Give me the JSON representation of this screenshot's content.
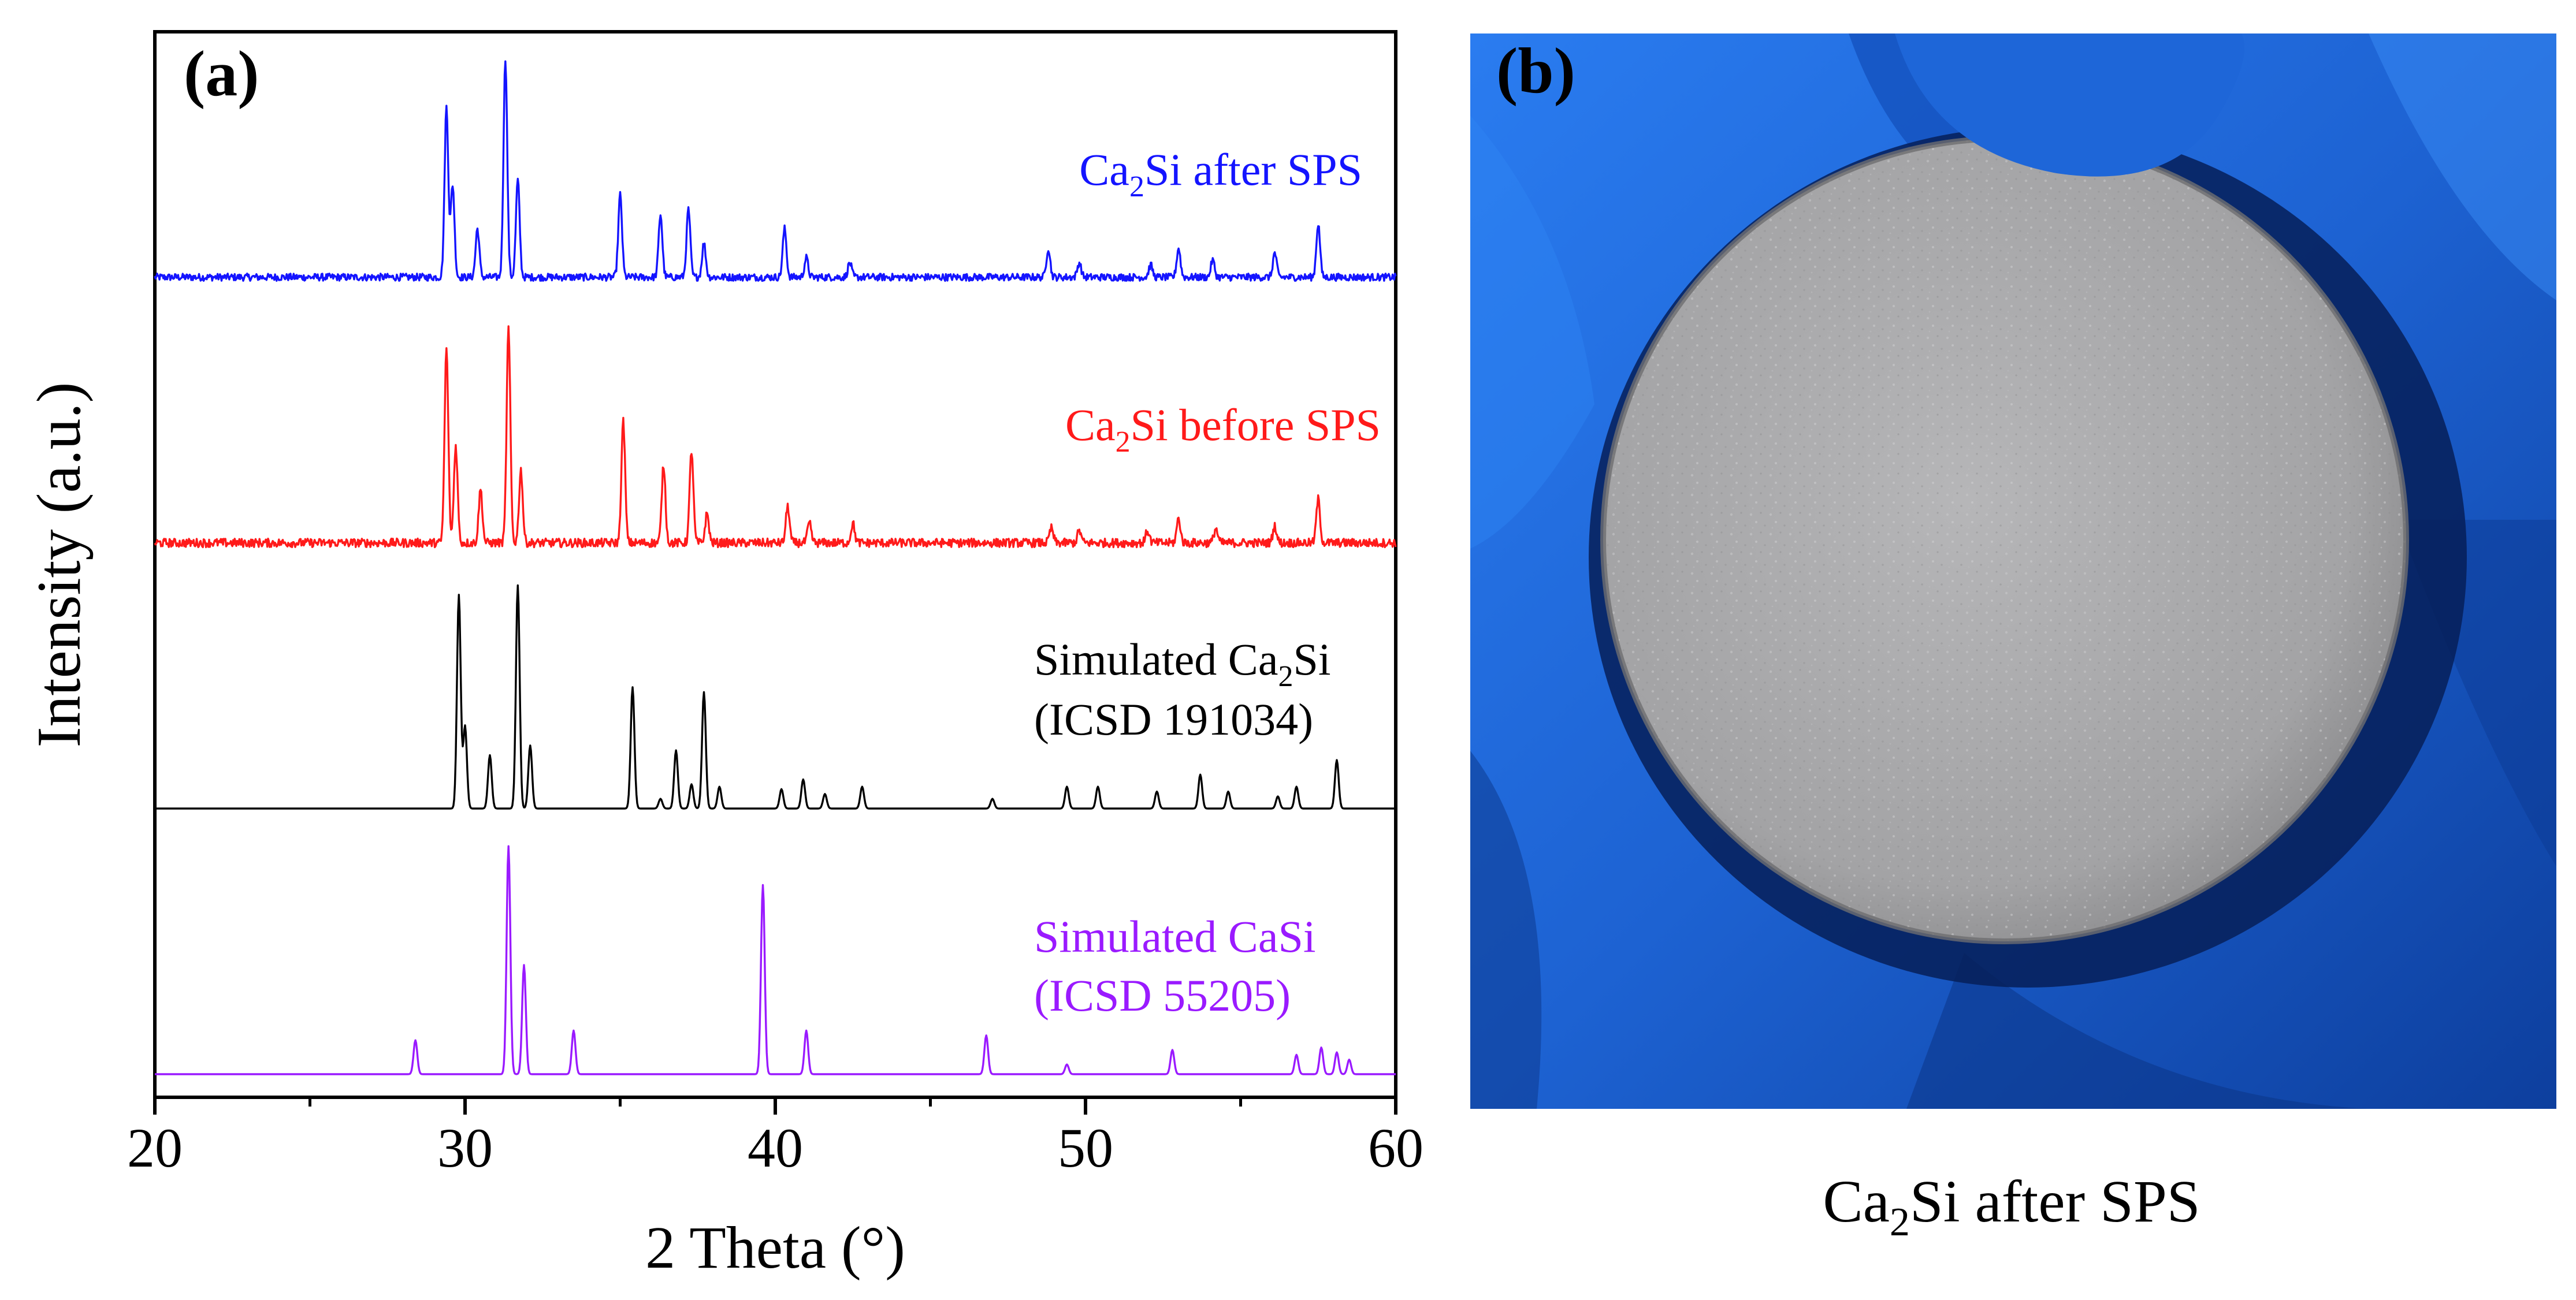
{
  "panel_a": {
    "label": "(a)"
  },
  "panel_b": {
    "label": "(b)",
    "caption_main": "Ca",
    "caption_sub": "2",
    "caption_rest": "Si after SPS"
  },
  "colors": {
    "after_sps": "#1414ff",
    "before_sps": "#ff1a1a",
    "sim_ca2si": "#000000",
    "sim_casi": "#9a1aff",
    "glove": "#1f6fe0",
    "pellet": "#a9a9ab"
  },
  "chart_data": {
    "type": "line",
    "title": "",
    "xlabel": "2 Theta (°)",
    "ylabel": "Intensity (a.u.)",
    "xlim": [
      20,
      60
    ],
    "xticks": [
      20,
      30,
      40,
      50,
      60
    ],
    "xtick_labels": [
      "20",
      "30",
      "40",
      "50",
      "60"
    ],
    "yticks": "none (arbitrary units, stacked offset patterns)",
    "series": [
      {
        "name": "Ca2Si after SPS",
        "legend_main": "Ca",
        "legend_sub": "2",
        "legend_rest": "Si after SPS",
        "color": "#1414ff",
        "offset": 3.0,
        "noise": 0.015,
        "peaks": [
          [
            29.4,
            0.7
          ],
          [
            29.6,
            0.38
          ],
          [
            30.4,
            0.2
          ],
          [
            31.3,
            0.9
          ],
          [
            31.7,
            0.4
          ],
          [
            35.0,
            0.34
          ],
          [
            36.3,
            0.26
          ],
          [
            37.2,
            0.28
          ],
          [
            37.7,
            0.14
          ],
          [
            40.3,
            0.2
          ],
          [
            41.0,
            0.08
          ],
          [
            42.4,
            0.06
          ],
          [
            48.8,
            0.12
          ],
          [
            49.8,
            0.06
          ],
          [
            52.1,
            0.05
          ],
          [
            53.0,
            0.12
          ],
          [
            54.1,
            0.07
          ],
          [
            56.1,
            0.1
          ],
          [
            57.5,
            0.22
          ]
        ]
      },
      {
        "name": "Ca2Si before SPS",
        "legend_main": "Ca",
        "legend_sub": "2",
        "legend_rest": "Si before SPS",
        "color": "#ff1a1a",
        "offset": 2.0,
        "noise": 0.018,
        "peaks": [
          [
            29.4,
            0.8
          ],
          [
            29.7,
            0.4
          ],
          [
            30.5,
            0.22
          ],
          [
            31.4,
            0.88
          ],
          [
            31.8,
            0.3
          ],
          [
            35.1,
            0.5
          ],
          [
            36.4,
            0.32
          ],
          [
            37.3,
            0.38
          ],
          [
            37.8,
            0.12
          ],
          [
            40.4,
            0.15
          ],
          [
            41.1,
            0.08
          ],
          [
            42.5,
            0.08
          ],
          [
            48.9,
            0.06
          ],
          [
            49.8,
            0.05
          ],
          [
            52.0,
            0.05
          ],
          [
            53.0,
            0.1
          ],
          [
            54.2,
            0.06
          ],
          [
            56.1,
            0.07
          ],
          [
            57.5,
            0.18
          ]
        ]
      },
      {
        "name": "Simulated Ca2Si (ICSD 191034)",
        "legend_main": "Simulated Ca",
        "legend_sub": "2",
        "legend_rest": "Si",
        "legend_line2": "(ICSD 191034)",
        "color": "#000000",
        "offset": 1.0,
        "noise": 0.0,
        "peaks": [
          [
            29.8,
            0.88
          ],
          [
            30.0,
            0.34
          ],
          [
            30.8,
            0.22
          ],
          [
            31.7,
            0.92
          ],
          [
            32.1,
            0.26
          ],
          [
            35.4,
            0.5
          ],
          [
            36.3,
            0.04
          ],
          [
            36.8,
            0.24
          ],
          [
            37.3,
            0.1
          ],
          [
            37.7,
            0.48
          ],
          [
            38.2,
            0.09
          ],
          [
            40.2,
            0.08
          ],
          [
            40.9,
            0.12
          ],
          [
            41.6,
            0.06
          ],
          [
            42.8,
            0.09
          ],
          [
            47.0,
            0.04
          ],
          [
            49.4,
            0.09
          ],
          [
            50.4,
            0.09
          ],
          [
            52.3,
            0.07
          ],
          [
            53.7,
            0.14
          ],
          [
            54.6,
            0.07
          ],
          [
            56.2,
            0.05
          ],
          [
            56.8,
            0.09
          ],
          [
            58.1,
            0.2
          ]
        ]
      },
      {
        "name": "Simulated CaSi (ICSD 55205)",
        "legend_main": "Simulated CaSi",
        "legend_sub": "",
        "legend_rest": "",
        "legend_line2": "(ICSD 55205)",
        "color": "#9a1aff",
        "offset": 0.0,
        "noise": 0.0,
        "peaks": [
          [
            28.4,
            0.14
          ],
          [
            31.4,
            0.94
          ],
          [
            31.9,
            0.45
          ],
          [
            33.5,
            0.18
          ],
          [
            39.6,
            0.78
          ],
          [
            41.0,
            0.18
          ],
          [
            46.8,
            0.16
          ],
          [
            49.4,
            0.04
          ],
          [
            52.8,
            0.1
          ],
          [
            56.8,
            0.08
          ],
          [
            57.6,
            0.11
          ],
          [
            58.1,
            0.09
          ],
          [
            58.5,
            0.06
          ]
        ]
      }
    ]
  }
}
